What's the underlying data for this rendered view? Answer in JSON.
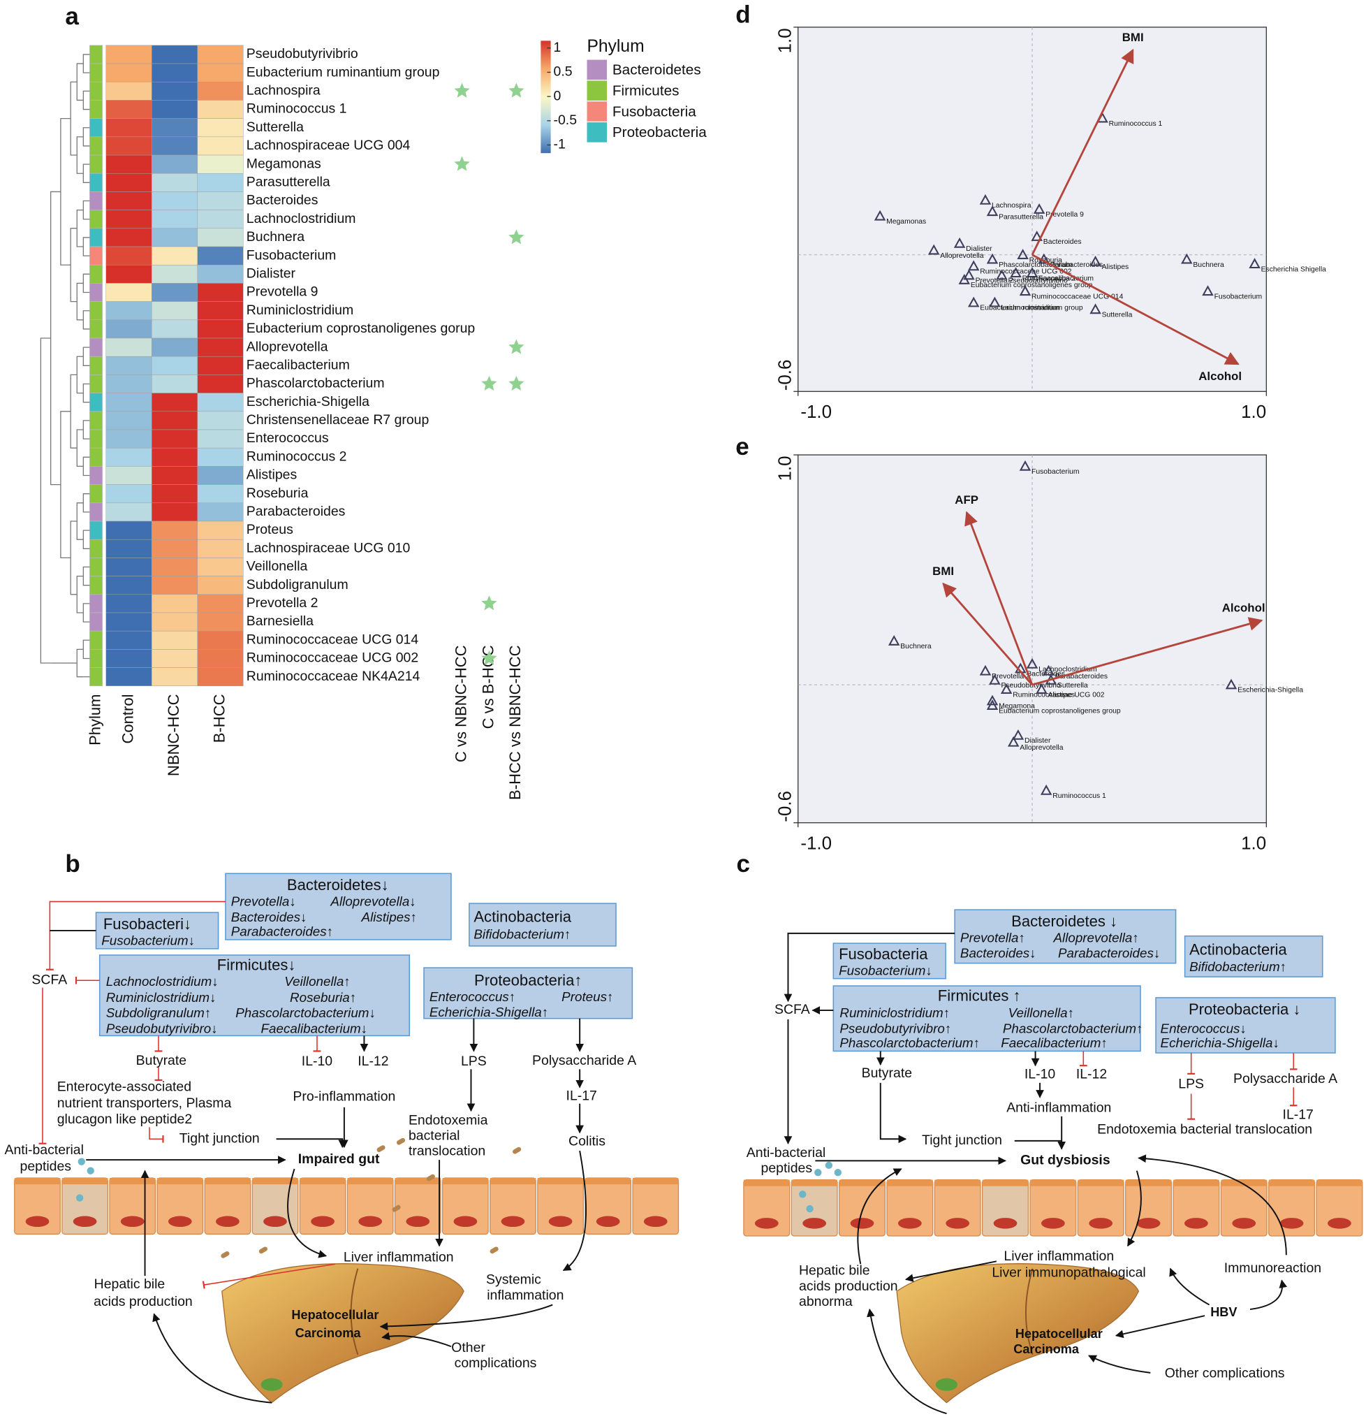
{
  "chart_data": [
    {
      "type": "heatmap",
      "label": "a",
      "rows": [
        "Pseudobutyrivibrio",
        "Eubacterium ruminantium group",
        "Lachnospira",
        "Ruminococcus 1",
        "Sutterella",
        "Lachnospiraceae UCG 004",
        "Megamonas",
        "Parasutterella",
        "Bacteroides",
        "Lachnoclostridium",
        "Buchnera",
        "Fusobacterium",
        "Dialister",
        "Prevotella 9",
        "Ruminiclostridium",
        "Eubacterium coprostanoligenes gorup",
        "Alloprevotella",
        "Faecalibacterium",
        "Phascolarctobacterium",
        "Escherichia-Shigella",
        "Christensenellaceae R7 group",
        "Enterococcus",
        "Ruminococcus 2",
        "Alistipes",
        "Roseburia",
        "Parabacteroides",
        "Proteus",
        "Lachnospiraceae UCG 010",
        "Veillonella",
        "Subdoligranulum",
        "Prevotella 2",
        "Barnesiella",
        "Ruminococcaceae UCG 014",
        "Ruminococcaceae UCG 002",
        "Ruminococcaceae NK4A214"
      ],
      "row_label_colors": [
        "#e0322a",
        "#e0322a",
        "#2f6db5",
        "#2f6db5",
        "#e0322a",
        "#2f6db5",
        "#e0322a",
        "#e0322a",
        "#e0322a",
        "#2f6db5",
        "#e0322a",
        "#e0322a",
        "#e0322a",
        "#e0322a",
        "#2f6db5",
        "#e0322a",
        "#e0322a",
        "#e0322a",
        "#e0322a",
        "#e0322a",
        "#e0322a",
        "#2f6db5",
        "#2f6db5",
        "#e0322a",
        "#2f6db5",
        "#e0322a",
        "#e0322a",
        "#2f6db5",
        "#e0322a",
        "#e0322a",
        "#e0322a",
        "#e0322a",
        "#2f6db5",
        "#2f6db5",
        "#2f6db5"
      ],
      "columns": [
        "Control",
        "NBNC-HCC",
        "B-HCC"
      ],
      "values": [
        [
          0.5,
          -1,
          0.5
        ],
        [
          0.5,
          -1,
          0.5
        ],
        [
          0.3,
          -1,
          0.6
        ],
        [
          0.8,
          -1,
          0.2
        ],
        [
          0.9,
          -0.9,
          0.1
        ],
        [
          0.9,
          -0.9,
          0.1
        ],
        [
          1,
          -0.7,
          -0.1
        ],
        [
          1,
          -0.4,
          -0.5
        ],
        [
          1,
          -0.5,
          -0.4
        ],
        [
          1,
          -0.5,
          -0.4
        ],
        [
          1,
          -0.6,
          -0.3
        ],
        [
          0.9,
          0.1,
          -0.9
        ],
        [
          1,
          -0.3,
          -0.6
        ],
        [
          0.1,
          -0.8,
          1
        ],
        [
          -0.6,
          -0.3,
          1
        ],
        [
          -0.7,
          -0.4,
          1
        ],
        [
          -0.3,
          -0.7,
          1
        ],
        [
          -0.6,
          -0.5,
          1
        ],
        [
          -0.6,
          -0.4,
          1
        ],
        [
          -0.6,
          1,
          -0.5
        ],
        [
          -0.6,
          1,
          -0.4
        ],
        [
          -0.6,
          1,
          -0.4
        ],
        [
          -0.5,
          1,
          -0.5
        ],
        [
          -0.3,
          1,
          -0.7
        ],
        [
          -0.5,
          1,
          -0.5
        ],
        [
          -0.4,
          1,
          -0.6
        ],
        [
          -1,
          0.6,
          0.3
        ],
        [
          -1,
          0.6,
          0.3
        ],
        [
          -1,
          0.6,
          0.3
        ],
        [
          -1,
          0.6,
          0.4
        ],
        [
          -1,
          0.3,
          0.6
        ],
        [
          -1,
          0.3,
          0.6
        ],
        [
          -1,
          0.2,
          0.7
        ],
        [
          -1,
          0.2,
          0.7
        ],
        [
          -1,
          0.2,
          0.7
        ]
      ],
      "phylum": [
        "Firmicutes",
        "Firmicutes",
        "Firmicutes",
        "Firmicutes",
        "Proteobacteria",
        "Firmicutes",
        "Firmicutes",
        "Proteobacteria",
        "Bacteroidetes",
        "Firmicutes",
        "Proteobacteria",
        "Fusobacteria",
        "Firmicutes",
        "Bacteroidetes",
        "Firmicutes",
        "Firmicutes",
        "Bacteroidetes",
        "Firmicutes",
        "Firmicutes",
        "Proteobacteria",
        "Firmicutes",
        "Firmicutes",
        "Firmicutes",
        "Bacteroidetes",
        "Firmicutes",
        "Bacteroidetes",
        "Proteobacteria",
        "Firmicutes",
        "Firmicutes",
        "Firmicutes",
        "Bacteroidetes",
        "Bacteroidetes",
        "Firmicutes",
        "Firmicutes",
        "Firmicutes"
      ],
      "phylum_axis_label": "Phylum",
      "legend_title": "Phylum",
      "phyla": [
        {
          "name": "Bacteroidetes",
          "color": "#b48ec0"
        },
        {
          "name": "Firmicutes",
          "color": "#8cc63f"
        },
        {
          "name": "Fusobacteria",
          "color": "#f4877a"
        },
        {
          "name": "Proteobacteria",
          "color": "#3dbdc0"
        }
      ],
      "colorscale": {
        "lim": [
          -1,
          1
        ],
        "ticks": [
          1,
          0.5,
          0,
          -0.5,
          -1
        ],
        "colors": [
          "#3f6fb0",
          "#a9d3e6",
          "#fbf7c6",
          "#f6a96a",
          "#d7302a"
        ]
      },
      "comparisons": [
        "C vs NBNC-HCC",
        "C vs B-HCC",
        "B-HCC vs NBNC-HCC"
      ],
      "star_color": "#8fd18f",
      "stars": [
        {
          "row": 2,
          "comparison": 0
        },
        {
          "row": 2,
          "comparison": 2
        },
        {
          "row": 6,
          "comparison": 0
        },
        {
          "row": 10,
          "comparison": 2
        },
        {
          "row": 16,
          "comparison": 2
        },
        {
          "row": 18,
          "comparison": 1
        },
        {
          "row": 18,
          "comparison": 2
        },
        {
          "row": 30,
          "comparison": 1
        },
        {
          "row": 33,
          "comparison": 1
        }
      ]
    },
    {
      "type": "biplot",
      "label": "d",
      "xlim": [
        -1,
        1
      ],
      "ylim": [
        -0.6,
        1
      ],
      "xticks": [
        {
          "value": -1,
          "label": "-1.0"
        },
        {
          "value": 1,
          "label": "1.0"
        }
      ],
      "yticks": [
        {
          "value": -0.6,
          "label": "-0.6"
        },
        {
          "value": 1,
          "label": "1.0"
        }
      ],
      "point_color": "#3d3d5c",
      "vector_color": "#b5453b",
      "vector_label_color": "#d9583b",
      "labels": [
        "Ruminococcus 1",
        "Megamonas",
        "Lachnospira",
        "Parasutterella",
        "Prevotella 9",
        "Dialister",
        "Alloprevotella",
        "Bacteroides",
        "Roseburia",
        "Phascolarctobacterium",
        "Ruminococcaceae UCG 002",
        "Prevotella 2",
        "Pseudobutyrivibrio",
        "Eubacterium coprostanoligenes group",
        "Parabacteroides",
        "Alistipes",
        "Faecalibacterium",
        "Ruminococcus 2",
        "Ruminococcaceae UCG 014",
        "Eubacterium ruminantium group",
        "Lachnoclostridium",
        "Sutterella",
        "Buchnera",
        "Escherichia Shigella",
        "Fusobacterium"
      ],
      "x": [
        0.3,
        -0.65,
        -0.2,
        -0.17,
        0.03,
        -0.31,
        -0.42,
        0.02,
        -0.04,
        -0.17,
        -0.25,
        -0.27,
        -0.13,
        -0.29,
        0.05,
        0.27,
        0,
        -0.07,
        -0.03,
        -0.25,
        -0.16,
        0.27,
        0.66,
        0.95,
        0.75
      ],
      "y": [
        0.6,
        0.17,
        0.24,
        0.19,
        0.2,
        0.05,
        0.02,
        0.08,
        0,
        -0.02,
        -0.05,
        -0.09,
        -0.09,
        -0.11,
        -0.02,
        -0.03,
        -0.08,
        -0.08,
        -0.16,
        -0.21,
        -0.21,
        -0.24,
        -0.02,
        -0.04,
        -0.16
      ],
      "vectors": {
        "labels": [
          "BMI",
          "Alcohol"
        ],
        "x": [
          0.43,
          0.88
        ],
        "y": [
          0.9,
          -0.48
        ]
      }
    },
    {
      "type": "biplot",
      "label": "e",
      "xlim": [
        -1,
        1
      ],
      "ylim": [
        -0.6,
        1
      ],
      "xticks": [
        {
          "value": -1,
          "label": "-1.0"
        },
        {
          "value": 1,
          "label": "1.0"
        }
      ],
      "yticks": [
        {
          "value": -0.6,
          "label": "-0.6"
        },
        {
          "value": 1,
          "label": "1.0"
        }
      ],
      "point_color": "#3d3d5c",
      "vector_color": "#b5453b",
      "vector_label_color": "#d9583b",
      "labels": [
        "Fusobacterium",
        "Buchnera",
        "Lachnoclostridium",
        "Prevotella 2",
        "Bacteroides",
        "Parabacteroides",
        "Pseudobutyrivibrio",
        "Sutterella",
        "Ruminococcaceae UCG 002",
        "Alistipes",
        "Escherichia-Shigella",
        "Megamona",
        "Eubacterium coprostanoligenes group",
        "Dialister",
        "Alloprevotella",
        "Ruminococcus 1"
      ],
      "x": [
        -0.03,
        -0.59,
        0,
        -0.2,
        -0.05,
        0.07,
        -0.16,
        0.08,
        -0.11,
        0.04,
        0.85,
        -0.17,
        -0.17,
        -0.06,
        -0.08,
        0.06
      ],
      "y": [
        0.95,
        0.19,
        0.09,
        0.06,
        0.07,
        0.06,
        0.02,
        0.02,
        -0.02,
        -0.02,
        0,
        -0.07,
        -0.09,
        -0.22,
        -0.25,
        -0.46
      ],
      "vectors": {
        "labels": [
          "AFP",
          "BMI",
          "Alcohol"
        ],
        "x": [
          -0.28,
          -0.38,
          0.98
        ],
        "y": [
          0.75,
          0.44,
          0.28
        ]
      }
    }
  ],
  "diagram_b": {
    "label": "b",
    "boxes": [
      {
        "title": "Bacteroidetes↓",
        "items": [
          "Prevotella↓",
          "Alloprevotella↓",
          "Bacteroides↓",
          "Alistipes↑",
          "Parabacteroides↑"
        ]
      },
      {
        "title": "Fusobacteri↓",
        "items": [
          "Fusobacterium↓"
        ]
      },
      {
        "title": "Actinobacteria",
        "items": [
          "Bifidobacterium↑"
        ]
      },
      {
        "title": "Firmicutes↓",
        "items": [
          "Lachnoclostridium↓",
          "Veillonella↑",
          "Ruminiclostridium↓",
          "Roseburia↑",
          "Subdoligranulum↑",
          "Phascolarctobacterium↓",
          "Pseudobutyrivibro↓",
          "Faecalibacterium↓"
        ]
      },
      {
        "title": "Proteobacteria↑",
        "items": [
          "Enterococcus↑",
          "Proteus↑",
          "Echerichia-Shigella↑"
        ]
      }
    ],
    "texts": [
      "SCFA",
      "Butyrate",
      "IL-10",
      "IL-12",
      "LPS",
      "Polysaccharide A",
      "IL-17",
      "Pro-inflammation",
      "Enterocyte-associated",
      "nutrient transporters, Plasma",
      "glucagon like peptide2",
      "Tight junction",
      "Endotoxemia",
      "bacterial",
      "translocation",
      "Colitis",
      "Anti-bacterial",
      "peptides",
      "Impaired gut",
      "Liver inflammation",
      "Systemic",
      "inflammation",
      "Hepatic bile",
      "acids production",
      "Hepatocellular",
      "Carcinoma",
      "Other",
      "complications"
    ]
  },
  "diagram_c": {
    "label": "c",
    "boxes": [
      {
        "title": "Bacteroidetes ↓",
        "items": [
          "Prevotella↑",
          "Alloprevotella↑",
          "Bacteroides↓",
          "Parabacteroides↓"
        ]
      },
      {
        "title": "Fusobacteria",
        "items": [
          "Fusobacterium↓"
        ]
      },
      {
        "title": "Actinobacteria",
        "items": [
          "Bifidobacterium↑"
        ]
      },
      {
        "title": "Firmicutes ↑",
        "items": [
          "Ruminiclostridium↑",
          "Veillonella↑",
          "Pseudobutyrivibro↑",
          "Phascolarctobacterium↑",
          "Phascolarctobacterium↑",
          "Faecalibacterium↑"
        ]
      },
      {
        "title": "Proteobacteria ↓",
        "items": [
          "Enterococcus↓",
          "Echerichia-Shigella↓"
        ]
      }
    ],
    "texts": [
      "SCFA",
      "Butyrate",
      "IL-10",
      "IL-12",
      "LPS",
      "Polysaccharide A",
      "Anti-inflammation",
      "IL-17",
      "Endotoxemia bacterial translocation",
      "Tight junction",
      "Anti-bacterial",
      "peptides",
      "Gut dysbiosis",
      "Liver inflammation",
      "Liver immunopathalogical",
      "Immunoreaction",
      "Hepatic bile",
      "acids production",
      "abnorma",
      "HBV",
      "Hepatocellular",
      "Carcinoma",
      "Other complications"
    ]
  }
}
